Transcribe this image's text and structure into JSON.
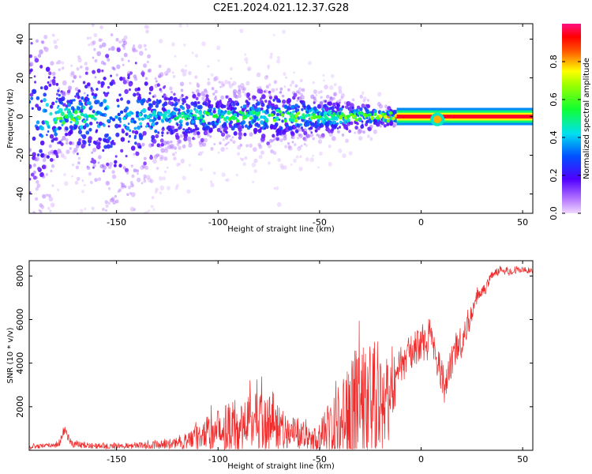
{
  "title": "C2E1.2024.021.12.37.G28",
  "chart_data": [
    {
      "type": "heatmap",
      "xlabel": "Height of straight line (km)",
      "ylabel": "Frequency (Hz)",
      "xlim": [
        -193,
        55
      ],
      "ylim": [
        -50,
        48
      ],
      "xticks": [
        -150,
        -100,
        -50,
        0,
        50
      ],
      "yticks": [
        -40,
        -20,
        0,
        20,
        40
      ],
      "colorbar": {
        "label": "Normalized spectral amplitude",
        "range": [
          0,
          1
        ],
        "ticks": [
          0.0,
          0.2,
          0.4,
          0.6,
          0.8
        ],
        "colormap": "rainbow (purple → blue → cyan → green → yellow → red → magenta)"
      },
      "bands": [
        {
          "x": -190,
          "spread": 45,
          "amp": 0.35
        },
        {
          "x": -175,
          "spread": 8,
          "amp": 0.6
        },
        {
          "x": -150,
          "spread": 40,
          "amp": 0.35
        },
        {
          "x": -125,
          "spread": 12,
          "amp": 0.45
        },
        {
          "x": -100,
          "spread": 9,
          "amp": 0.5
        },
        {
          "x": -75,
          "spread": 10,
          "amp": 0.55
        },
        {
          "x": -50,
          "spread": 7,
          "amp": 0.55
        },
        {
          "x": -25,
          "spread": 4,
          "amp": 0.6
        },
        {
          "x": -12,
          "spread": 1.5,
          "amp": 0.8
        },
        {
          "x": 0,
          "spread": 0.8,
          "amp": 0.95
        },
        {
          "x": 8,
          "spread": 2,
          "amp": 0.9
        },
        {
          "x": 20,
          "spread": 0.8,
          "amp": 0.95
        },
        {
          "x": 55,
          "spread": 0.8,
          "amp": 0.95
        }
      ]
    },
    {
      "type": "line",
      "xlabel": "Height of straight line (km)",
      "ylabel": "SNR (10 * v/v)",
      "xlim": [
        -193,
        55
      ],
      "ylim": [
        0,
        8700
      ],
      "xticks": [
        -150,
        -100,
        -50,
        0,
        50
      ],
      "yticks": [
        2000,
        4000,
        6000,
        8000
      ],
      "color": "#ee2a2a",
      "series": [
        {
          "x": [
            -193,
            -185,
            -178,
            -176,
            -172,
            -160,
            -150,
            -140,
            -125,
            -115,
            -105,
            -95,
            -85,
            -78,
            -70,
            -62,
            -55,
            -48,
            -42,
            -35,
            -30,
            -25,
            -20,
            -15,
            -10,
            -5,
            0,
            5,
            10,
            12,
            14,
            18,
            22,
            25,
            28,
            32,
            35,
            40,
            45,
            50,
            55
          ],
          "mean": [
            150,
            200,
            300,
            1000,
            300,
            200,
            200,
            200,
            280,
            450,
            800,
            1100,
            1300,
            1500,
            1100,
            800,
            500,
            700,
            1200,
            1700,
            2200,
            2400,
            2500,
            2700,
            4100,
            4500,
            4900,
            5200,
            3600,
            2700,
            3800,
            4700,
            5400,
            6300,
            7100,
            7500,
            8100,
            8300,
            8200,
            8300,
            8200
          ],
          "spread": [
            100,
            100,
            150,
            300,
            150,
            120,
            120,
            150,
            200,
            400,
            800,
            1100,
            1300,
            1500,
            1000,
            700,
            500,
            900,
            1700,
            2500,
            3000,
            3200,
            2800,
            1500,
            700,
            800,
            700,
            600,
            900,
            700,
            800,
            700,
            600,
            400,
            300,
            250,
            200,
            150,
            150,
            150,
            150
          ]
        }
      ]
    }
  ]
}
